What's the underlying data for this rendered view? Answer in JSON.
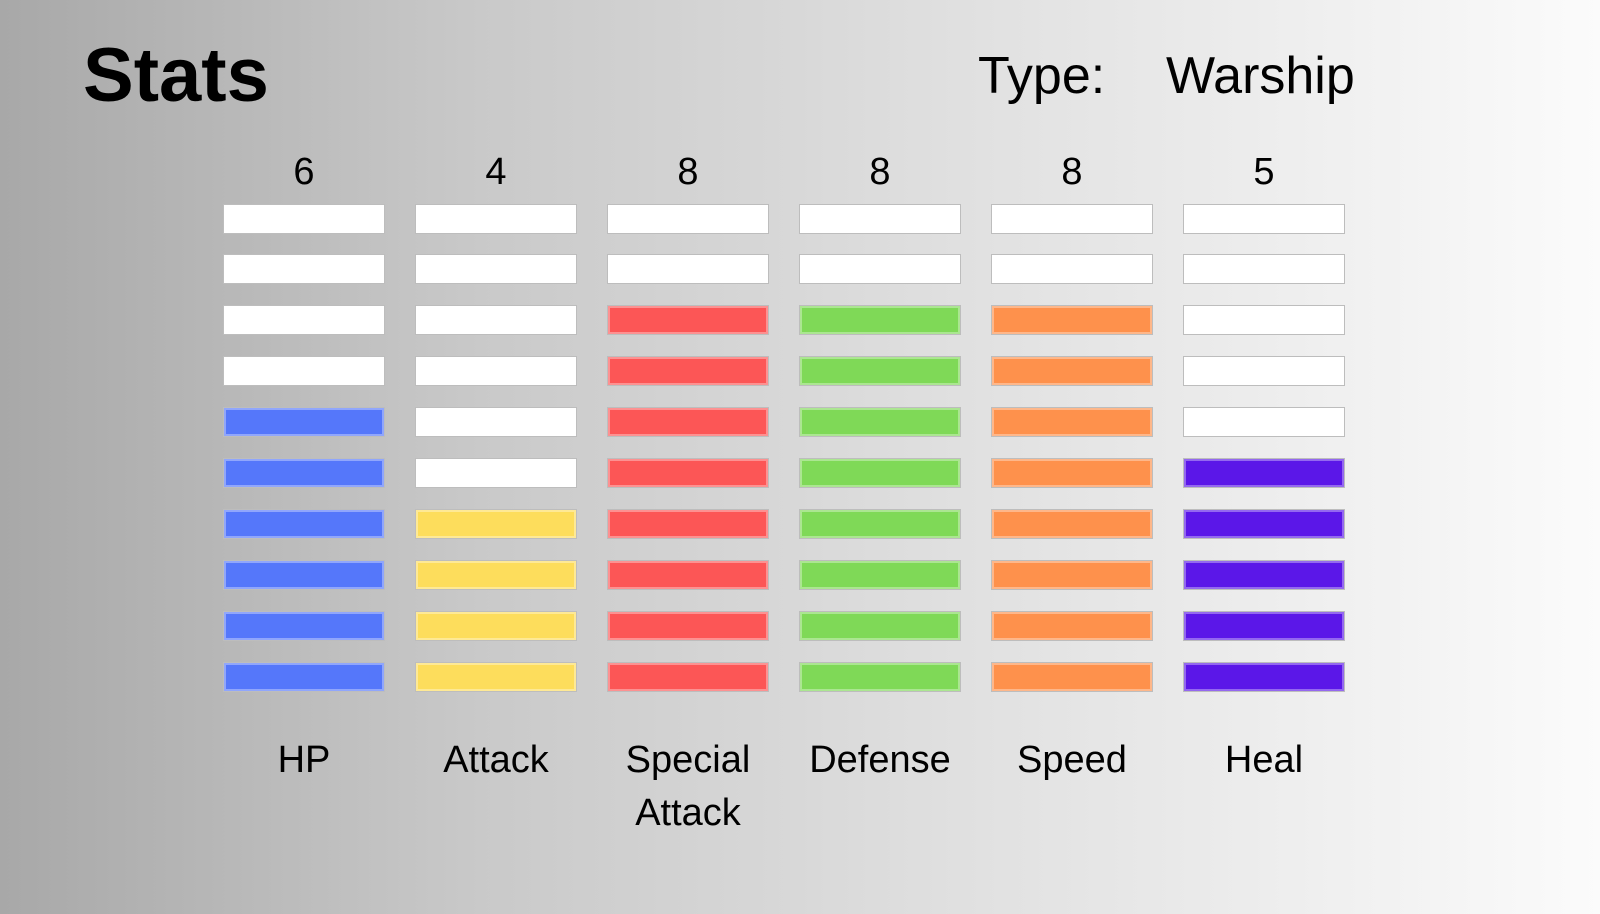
{
  "title": "Stats",
  "type": {
    "label": "Type:",
    "value": "Warship"
  },
  "chart_data": {
    "type": "bar",
    "max": 10,
    "categories": [
      "HP",
      "Attack",
      "Special Attack",
      "Defense",
      "Speed",
      "Heal"
    ],
    "values": [
      6,
      4,
      8,
      8,
      8,
      5
    ],
    "value_labels": [
      "6",
      "4",
      "8",
      "8",
      "8",
      "5"
    ],
    "colors": [
      "#5577fa",
      "#fddd5c",
      "#fc5656",
      "#7fd957",
      "#fe914c",
      "#5b17e8"
    ],
    "empty_color": "#ffffff"
  }
}
